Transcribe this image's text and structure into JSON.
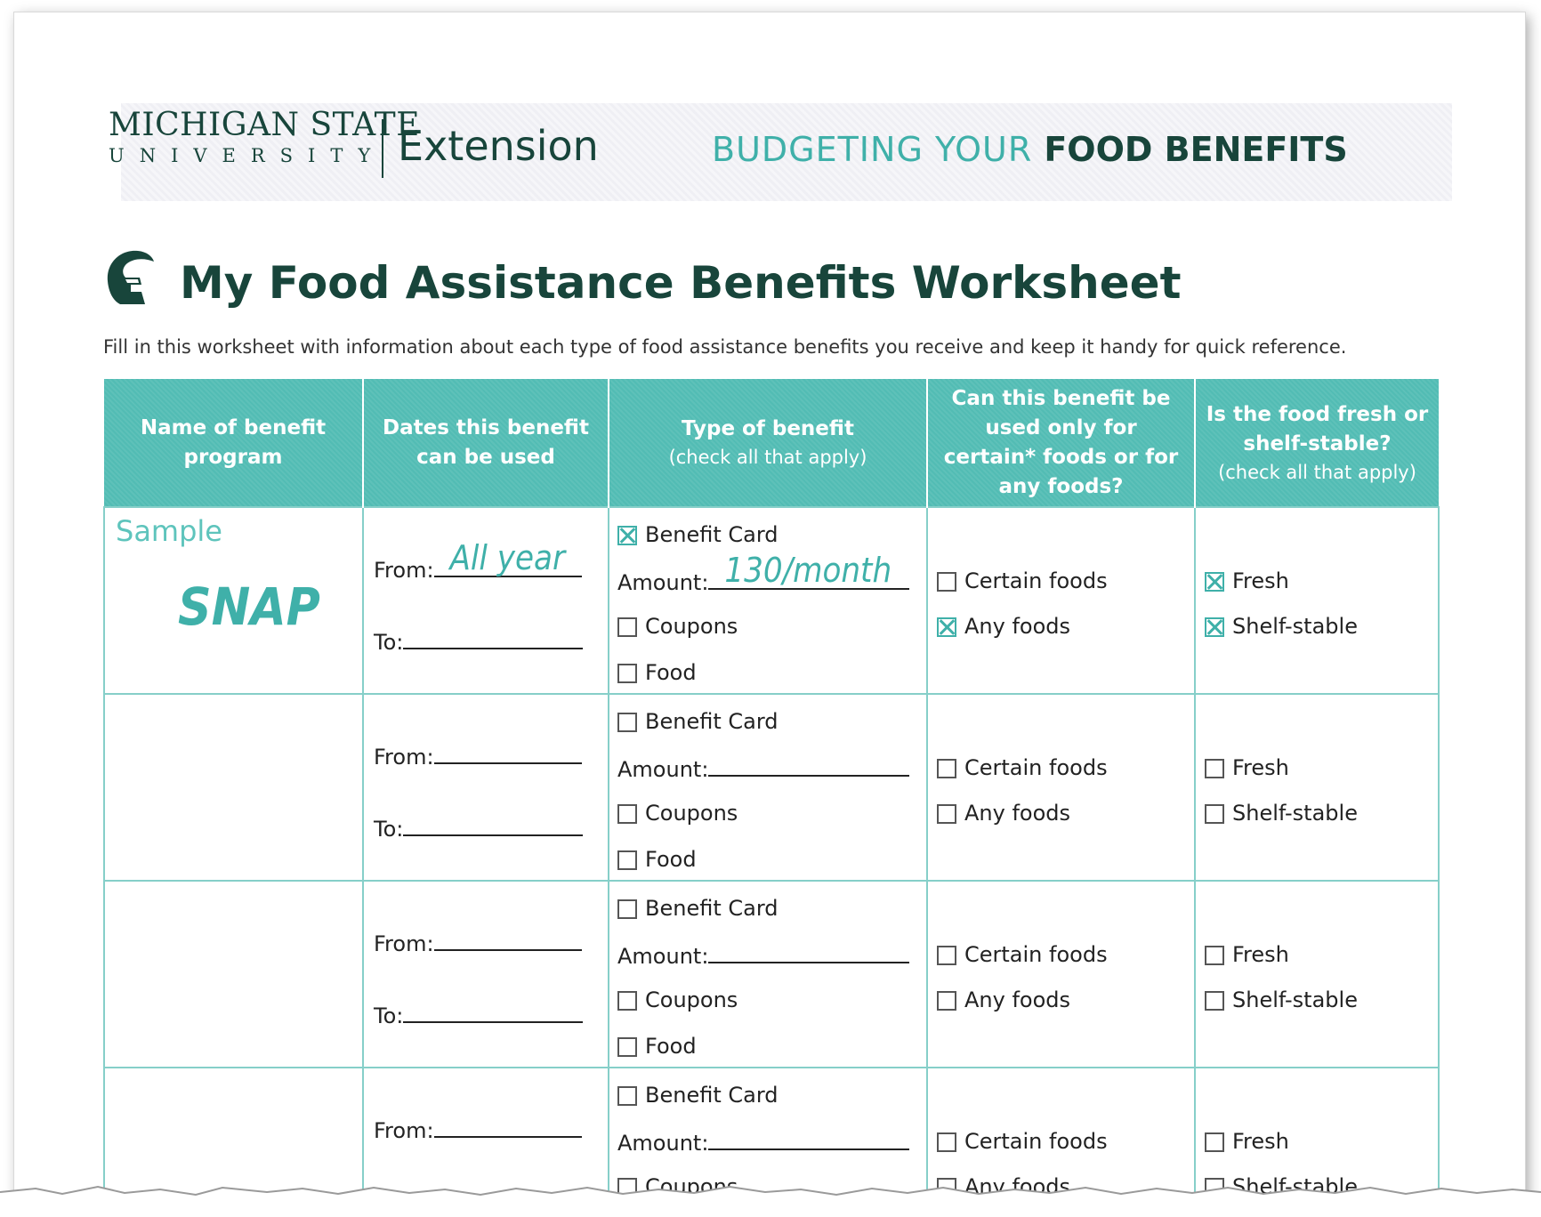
{
  "header": {
    "msu_line1": "MICHIGAN STATE",
    "msu_line2": "UNIVERSITY",
    "extension": "Extension",
    "title_light": "BUDGETING YOUR ",
    "title_bold": "FOOD BENEFITS"
  },
  "page_title": "My Food Assistance Benefits Worksheet",
  "intro": "Fill in this worksheet with information about each type of food assistance benefits you receive and keep it handy for quick reference.",
  "columns": {
    "name": "Name of benefit program",
    "dates": "Dates this benefit can be used",
    "type": "Type of benefit",
    "type_sub": "(check all that apply)",
    "scope": "Can this benefit be used only for certain* foods or for any foods?",
    "fresh": "Is the food fresh or shelf-stable?",
    "fresh_sub": "(check all that apply)"
  },
  "labels": {
    "from": "From:",
    "to": "To:",
    "benefit_card": "Benefit Card",
    "amount": "Amount:",
    "coupons": "Coupons",
    "food": "Food",
    "certain_foods": "Certain foods",
    "any_foods": "Any foods",
    "fresh": "Fresh",
    "shelf_stable": "Shelf-stable"
  },
  "sample": {
    "label": "Sample",
    "program": "SNAP",
    "from": "All year",
    "amount": "130/month",
    "checked": {
      "benefit_card": true,
      "coupons": false,
      "food": false,
      "certain_foods": false,
      "any_foods": true,
      "fresh": true,
      "shelf_stable": true
    }
  },
  "colors": {
    "msu_green": "#18453b",
    "teal": "#52bcb4",
    "teal_text": "#3fb0a9"
  },
  "icons": [
    "spartan-helmet-icon",
    "checkbox-icon"
  ]
}
